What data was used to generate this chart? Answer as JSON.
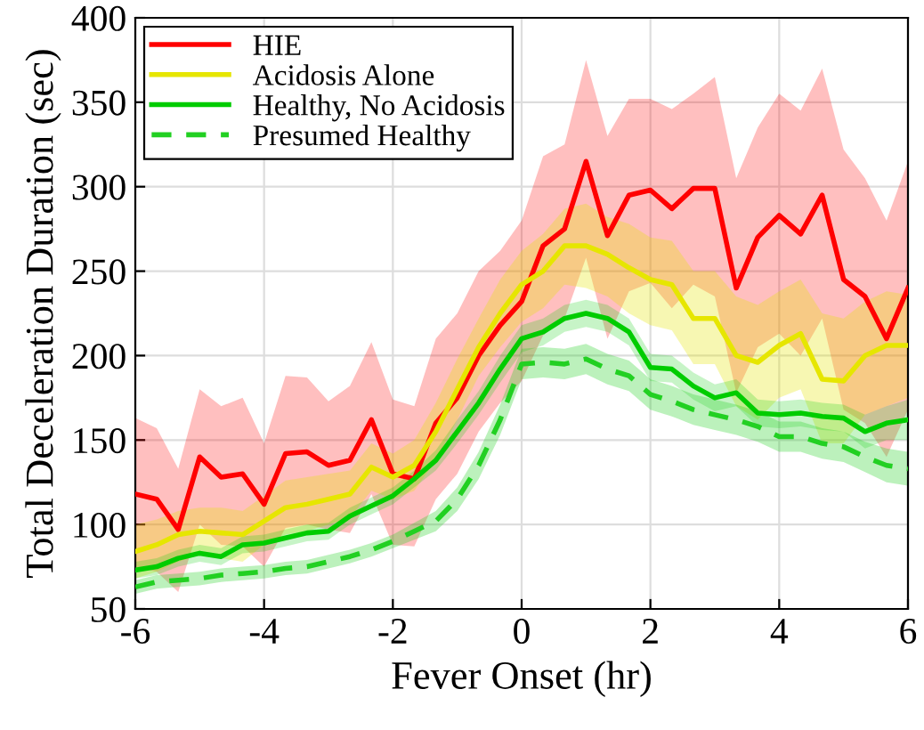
{
  "chart_data": {
    "type": "line",
    "xlabel": "Fever Onset (hr)",
    "ylabel": "Total Deceleration Duration (sec)",
    "x": [
      -6,
      -5.667,
      -5.333,
      -5,
      -4.667,
      -4.333,
      -4,
      -3.667,
      -3.333,
      -3,
      -2.667,
      -2.333,
      -2,
      -1.667,
      -1.333,
      -1,
      -0.667,
      -0.333,
      0,
      0.333,
      0.667,
      1,
      1.333,
      1.667,
      2,
      2.333,
      2.667,
      3,
      3.333,
      3.667,
      4,
      4.333,
      4.667,
      5,
      5.333,
      5.667,
      6
    ],
    "xlim": [
      -6,
      6
    ],
    "xticks": [
      -6,
      -4,
      -2,
      0,
      2,
      4,
      6
    ],
    "ylim": [
      50,
      400
    ],
    "yticks": [
      50,
      100,
      150,
      200,
      250,
      300,
      350,
      400
    ],
    "grid": true,
    "legend": "top left",
    "series": [
      {
        "name": "HIE",
        "color": "#ff0000",
        "line_style": "solid",
        "values": [
          118,
          115,
          97,
          140,
          128,
          130,
          112,
          142,
          143,
          135,
          138,
          162,
          130,
          127,
          160,
          175,
          200,
          218,
          232,
          265,
          275,
          315,
          271,
          295,
          298,
          287,
          299,
          299,
          240,
          270,
          283,
          272,
          295,
          245,
          235,
          210,
          240
        ],
        "lower": [
          75,
          72,
          60,
          100,
          88,
          87,
          75,
          98,
          100,
          97,
          95,
          118,
          88,
          87,
          115,
          130,
          155,
          172,
          185,
          212,
          222,
          258,
          210,
          238,
          243,
          228,
          242,
          235,
          178,
          205,
          213,
          200,
          222,
          168,
          160,
          140,
          168
        ],
        "upper": [
          163,
          157,
          133,
          180,
          170,
          175,
          148,
          188,
          187,
          173,
          182,
          208,
          174,
          170,
          210,
          225,
          250,
          262,
          280,
          318,
          325,
          375,
          330,
          352,
          352,
          346,
          355,
          365,
          305,
          335,
          355,
          345,
          370,
          322,
          305,
          280,
          315
        ]
      },
      {
        "name": "Acidosis Alone",
        "color": "#e6e600",
        "line_style": "solid",
        "values": [
          84,
          88,
          94,
          96,
          95,
          94,
          102,
          110,
          112,
          115,
          118,
          134,
          128,
          135,
          155,
          180,
          205,
          225,
          242,
          250,
          265,
          265,
          260,
          252,
          245,
          242,
          222,
          222,
          200,
          196,
          206,
          213,
          186,
          185,
          200,
          206,
          206
        ],
        "lower": [
          68,
          72,
          78,
          82,
          80,
          78,
          88,
          94,
          96,
          100,
          104,
          120,
          115,
          120,
          138,
          162,
          188,
          205,
          220,
          228,
          242,
          240,
          235,
          225,
          218,
          215,
          195,
          195,
          170,
          162,
          175,
          180,
          148,
          148,
          165,
          170,
          175
        ],
        "upper": [
          100,
          103,
          108,
          110,
          110,
          108,
          117,
          126,
          128,
          130,
          132,
          148,
          142,
          150,
          172,
          198,
          222,
          245,
          262,
          272,
          287,
          290,
          282,
          278,
          270,
          268,
          250,
          250,
          235,
          230,
          238,
          245,
          225,
          222,
          232,
          238,
          236
        ]
      },
      {
        "name": "Healthy, No Acidosis",
        "color": "#00cc00",
        "line_style": "solid",
        "values": [
          73,
          75,
          80,
          83,
          81,
          88,
          89,
          92,
          95,
          96,
          105,
          111,
          117,
          127,
          138,
          155,
          172,
          192,
          210,
          214,
          222,
          225,
          222,
          214,
          193,
          192,
          182,
          175,
          178,
          166,
          165,
          166,
          164,
          163,
          155,
          160,
          162
        ],
        "lower": [
          68,
          70,
          75,
          78,
          76,
          83,
          84,
          87,
          90,
          91,
          100,
          106,
          112,
          122,
          132,
          148,
          165,
          184,
          202,
          206,
          214,
          217,
          214,
          206,
          185,
          184,
          174,
          167,
          170,
          158,
          157,
          158,
          156,
          155,
          145,
          150,
          150
        ],
        "upper": [
          78,
          80,
          85,
          88,
          86,
          93,
          94,
          97,
          100,
          101,
          110,
          116,
          122,
          132,
          144,
          162,
          179,
          200,
          218,
          222,
          230,
          233,
          230,
          222,
          201,
          200,
          190,
          183,
          186,
          174,
          173,
          174,
          172,
          171,
          165,
          170,
          174
        ]
      },
      {
        "name": "Presumed Healthy",
        "color": "#22d022",
        "line_style": "dashed",
        "values": [
          63,
          66,
          67,
          68,
          70,
          71,
          72,
          74,
          75,
          78,
          81,
          85,
          90,
          96,
          102,
          115,
          135,
          162,
          195,
          196,
          195,
          198,
          192,
          188,
          177,
          173,
          168,
          165,
          162,
          158,
          152,
          152,
          148,
          146,
          140,
          135,
          133
        ],
        "lower": [
          59,
          62,
          63,
          64,
          66,
          67,
          68,
          70,
          71,
          74,
          77,
          81,
          86,
          91,
          96,
          108,
          127,
          153,
          186,
          187,
          186,
          189,
          183,
          179,
          168,
          164,
          159,
          156,
          153,
          149,
          143,
          143,
          139,
          137,
          131,
          125,
          123
        ],
        "upper": [
          67,
          70,
          71,
          72,
          74,
          75,
          76,
          78,
          79,
          82,
          85,
          89,
          94,
          101,
          108,
          122,
          143,
          171,
          204,
          205,
          204,
          207,
          201,
          197,
          186,
          182,
          177,
          174,
          171,
          167,
          161,
          161,
          157,
          155,
          149,
          145,
          143
        ]
      }
    ]
  }
}
